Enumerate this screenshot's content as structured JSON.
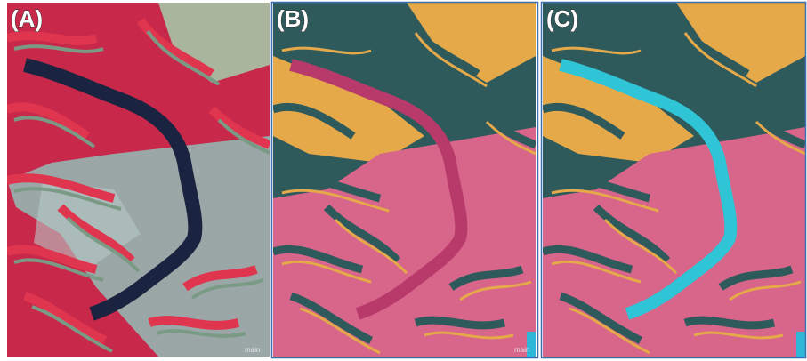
{
  "panels": [
    {
      "label": "(A)",
      "watermark": "main"
    },
    {
      "label": "(B)",
      "watermark": "main"
    },
    {
      "label": "(C)"
    }
  ]
}
